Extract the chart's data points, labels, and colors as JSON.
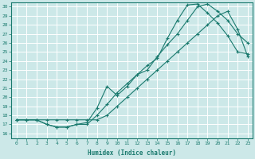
{
  "xlabel": "Humidex (Indice chaleur)",
  "ylabel": "",
  "bg_color": "#cce8e8",
  "grid_color": "#ffffff",
  "line_color": "#1a7a6e",
  "xlim": [
    -0.5,
    23.5
  ],
  "ylim": [
    15.5,
    30.5
  ],
  "xticks": [
    0,
    1,
    2,
    3,
    4,
    5,
    6,
    7,
    8,
    9,
    10,
    11,
    12,
    13,
    14,
    15,
    16,
    17,
    18,
    19,
    20,
    21,
    22,
    23
  ],
  "yticks": [
    16,
    17,
    18,
    19,
    20,
    21,
    22,
    23,
    24,
    25,
    26,
    27,
    28,
    29,
    30
  ],
  "line1_x": [
    0,
    1,
    2,
    3,
    4,
    5,
    6,
    7,
    8,
    9,
    10,
    11,
    12,
    13,
    14,
    15,
    16,
    17,
    18,
    19,
    20,
    21,
    22,
    23
  ],
  "line1_y": [
    17.5,
    17.5,
    17.5,
    17.5,
    17.5,
    17.5,
    17.5,
    17.5,
    17.5,
    18.0,
    19.0,
    20.0,
    21.0,
    22.0,
    23.0,
    24.0,
    25.0,
    26.0,
    27.0,
    28.0,
    29.0,
    29.5,
    27.5,
    24.5
  ],
  "line2_x": [
    0,
    1,
    2,
    3,
    4,
    5,
    6,
    7,
    8,
    9,
    10,
    11,
    12,
    13,
    14,
    15,
    16,
    17,
    18,
    19,
    20,
    21,
    22,
    23
  ],
  "line2_y": [
    17.5,
    17.5,
    17.5,
    17.0,
    16.7,
    16.7,
    17.0,
    17.0,
    18.0,
    19.2,
    20.5,
    21.5,
    22.5,
    23.0,
    24.5,
    25.8,
    27.0,
    28.5,
    30.0,
    30.3,
    29.5,
    28.5,
    27.0,
    26.0
  ],
  "line3_x": [
    0,
    1,
    2,
    3,
    4,
    5,
    6,
    7,
    8,
    9,
    10,
    11,
    12,
    13,
    14,
    15,
    16,
    17,
    18,
    19,
    20,
    21,
    22,
    23
  ],
  "line3_y": [
    17.5,
    17.5,
    17.5,
    17.0,
    16.7,
    16.7,
    17.0,
    17.2,
    18.8,
    21.2,
    20.2,
    21.2,
    22.5,
    23.5,
    24.3,
    26.5,
    28.5,
    30.2,
    30.3,
    29.3,
    28.2,
    26.8,
    25.0,
    24.8
  ]
}
